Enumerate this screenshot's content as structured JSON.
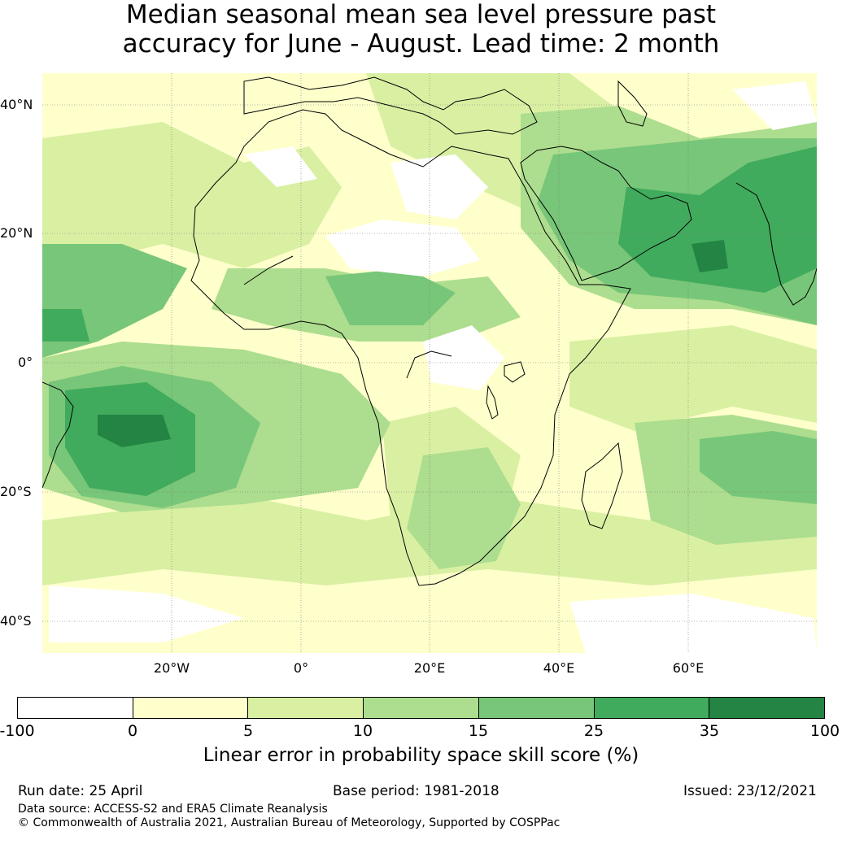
{
  "title": {
    "line1": "Median seasonal mean sea level pressure past",
    "line2": "accuracy for June - August. Lead time: 2 month"
  },
  "map": {
    "lat_labels": [
      "40°N",
      "20°N",
      "0°",
      "20°S",
      "40°S"
    ],
    "lon_labels": [
      "20°W",
      "0°",
      "20°E",
      "40°E",
      "60°E"
    ],
    "grid": true
  },
  "colorbar": {
    "ticks": [
      "-100",
      "0",
      "5",
      "10",
      "15",
      "25",
      "35",
      "100"
    ],
    "colors": [
      "#ffffff",
      "#ffffcc",
      "#d9f0a3",
      "#addd8e",
      "#78c679",
      "#41ab5d",
      "#238443"
    ],
    "label": "Linear error in probability space skill score (%)"
  },
  "footer": {
    "run_date": "Run date: 25 April",
    "base_period": "Base period: 1981-2018",
    "issued": "Issued: 23/12/2021",
    "data_source": "Data source: ACCESS-S2 and ERA5 Climate Reanalysis",
    "copyright": "© Commonwealth of Australia 2021, Australian Bureau of Meteorology, Supported by COSPPac"
  }
}
